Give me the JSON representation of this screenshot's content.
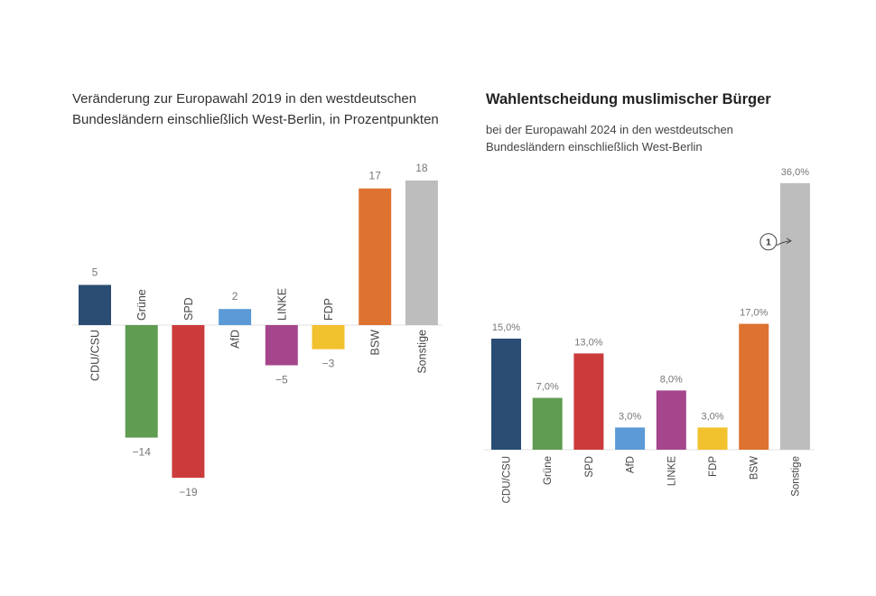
{
  "chart_data": [
    {
      "type": "bar",
      "title": "Veränderung zur Europawahl 2019 in den westdeutschen Bundesländern einschließlich West-Berlin, in Prozentpunkten",
      "categories": [
        "CDU/CSU",
        "Grüne",
        "SPD",
        "AfD",
        "LINKE",
        "FDP",
        "BSW",
        "Sonstige"
      ],
      "values": [
        5,
        -14,
        -19,
        2,
        -5,
        -3,
        17,
        18
      ],
      "value_labels": [
        "5",
        "−14",
        "−19",
        "2",
        "−5",
        "−3",
        "17",
        "18"
      ],
      "colors": [
        "#2b4d74",
        "#609c52",
        "#cc3b3b",
        "#5b9ad7",
        "#a5468c",
        "#f2c12e",
        "#de7231",
        "#bdbdbd"
      ],
      "ylim": [
        -19,
        18
      ],
      "xlabel": "",
      "ylabel": ""
    },
    {
      "type": "bar",
      "title": "Wahlentscheidung muslimischer Bürger",
      "subtitle": "bei der Europawahl 2024 in den westdeutschen Bundesländern einschließlich West-Berlin",
      "categories": [
        "CDU/CSU",
        "Grüne",
        "SPD",
        "AfD",
        "LINKE",
        "FDP",
        "BSW",
        "Sonstige"
      ],
      "values": [
        15.0,
        7.0,
        13.0,
        3.0,
        8.0,
        3.0,
        17.0,
        36.0
      ],
      "value_labels": [
        "15,0%",
        "7,0%",
        "13,0%",
        "3,0%",
        "8,0%",
        "3,0%",
        "17,0%",
        "36,0%"
      ],
      "colors": [
        "#2b4d74",
        "#609c52",
        "#cc3b3b",
        "#5b9ad7",
        "#a5468c",
        "#f2c12e",
        "#de7231",
        "#bdbdbd"
      ],
      "ylim": [
        0,
        36
      ],
      "annotation": "1",
      "xlabel": "",
      "ylabel": ""
    }
  ]
}
